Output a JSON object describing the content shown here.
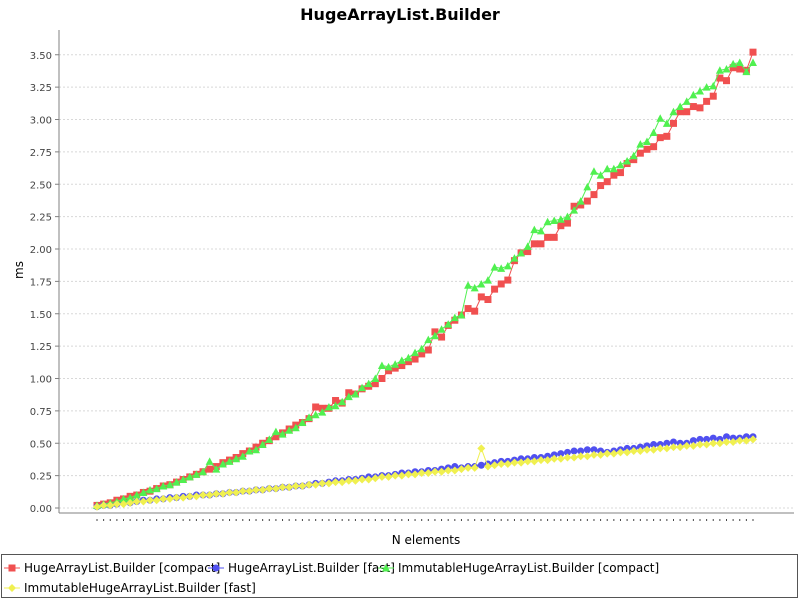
{
  "chart_data": {
    "type": "line",
    "title": "HugeArrayList.Builder",
    "xlabel": "N elements",
    "ylabel": "ms",
    "ylim": [
      0,
      3.6
    ],
    "yticks": [
      "0.00",
      "0.25",
      "0.50",
      "0.75",
      "1.00",
      "1.25",
      "1.50",
      "1.75",
      "2.00",
      "2.25",
      "2.50",
      "2.75",
      "3.00",
      "3.25",
      "3.50"
    ],
    "grid": true,
    "legend_position": "bottom",
    "x_points": 100,
    "series": [
      {
        "name": "HugeArrayList.Builder [compact]",
        "color": "#f05050",
        "marker": "square",
        "values": [
          0.02,
          0.03,
          0.04,
          0.06,
          0.07,
          0.09,
          0.1,
          0.12,
          0.13,
          0.15,
          0.17,
          0.18,
          0.2,
          0.22,
          0.24,
          0.26,
          0.28,
          0.3,
          0.32,
          0.35,
          0.37,
          0.39,
          0.42,
          0.44,
          0.47,
          0.5,
          0.52,
          0.55,
          0.58,
          0.61,
          0.64,
          0.66,
          0.69,
          0.78,
          0.77,
          0.77,
          0.83,
          0.81,
          0.89,
          0.88,
          0.92,
          0.94,
          0.96,
          1.0,
          1.06,
          1.08,
          1.1,
          1.13,
          1.15,
          1.19,
          1.22,
          1.36,
          1.32,
          1.41,
          1.45,
          1.49,
          1.54,
          1.52,
          1.63,
          1.61,
          1.69,
          1.73,
          1.76,
          1.91,
          1.97,
          1.98,
          2.04,
          2.04,
          2.09,
          2.09,
          2.18,
          2.2,
          2.33,
          2.34,
          2.37,
          2.42,
          2.49,
          2.52,
          2.57,
          2.59,
          2.66,
          2.69,
          2.74,
          2.77,
          2.79,
          2.86,
          2.87,
          2.97,
          3.06,
          3.06,
          3.1,
          3.09,
          3.14,
          3.18,
          3.32,
          3.3,
          3.4,
          3.39,
          3.38,
          3.52
        ]
      },
      {
        "name": "HugeArrayList.Builder [fast]",
        "color": "#5050f0",
        "marker": "circle",
        "values": [
          0.01,
          0.02,
          0.02,
          0.03,
          0.04,
          0.04,
          0.05,
          0.06,
          0.06,
          0.07,
          0.07,
          0.08,
          0.08,
          0.09,
          0.09,
          0.1,
          0.1,
          0.1,
          0.11,
          0.11,
          0.12,
          0.12,
          0.13,
          0.13,
          0.14,
          0.14,
          0.15,
          0.15,
          0.16,
          0.16,
          0.17,
          0.17,
          0.18,
          0.19,
          0.19,
          0.2,
          0.21,
          0.21,
          0.22,
          0.22,
          0.23,
          0.24,
          0.24,
          0.25,
          0.25,
          0.26,
          0.27,
          0.27,
          0.28,
          0.28,
          0.29,
          0.29,
          0.3,
          0.31,
          0.32,
          0.31,
          0.32,
          0.32,
          0.33,
          0.34,
          0.35,
          0.36,
          0.36,
          0.37,
          0.38,
          0.38,
          0.39,
          0.39,
          0.4,
          0.41,
          0.42,
          0.43,
          0.44,
          0.44,
          0.45,
          0.45,
          0.44,
          0.43,
          0.44,
          0.45,
          0.46,
          0.46,
          0.47,
          0.48,
          0.49,
          0.49,
          0.5,
          0.51,
          0.5,
          0.5,
          0.52,
          0.53,
          0.53,
          0.54,
          0.53,
          0.55,
          0.54,
          0.54,
          0.55,
          0.55
        ]
      },
      {
        "name": "ImmutableHugeArrayList.Builder [compact]",
        "color": "#50f050",
        "marker": "triangle",
        "values": [
          0.02,
          0.03,
          0.04,
          0.05,
          0.07,
          0.08,
          0.1,
          0.12,
          0.14,
          0.15,
          0.17,
          0.18,
          0.2,
          0.22,
          0.24,
          0.26,
          0.28,
          0.36,
          0.3,
          0.34,
          0.36,
          0.38,
          0.4,
          0.44,
          0.45,
          0.49,
          0.53,
          0.59,
          0.57,
          0.6,
          0.62,
          0.66,
          0.7,
          0.72,
          0.74,
          0.78,
          0.79,
          0.82,
          0.86,
          0.88,
          0.93,
          0.96,
          1.0,
          1.1,
          1.09,
          1.11,
          1.14,
          1.16,
          1.2,
          1.23,
          1.3,
          1.33,
          1.38,
          1.42,
          1.47,
          1.49,
          1.72,
          1.7,
          1.73,
          1.76,
          1.86,
          1.85,
          1.87,
          1.93,
          1.97,
          2.02,
          2.15,
          2.14,
          2.21,
          2.22,
          2.23,
          2.25,
          2.3,
          2.37,
          2.48,
          2.6,
          2.57,
          2.62,
          2.62,
          2.65,
          2.68,
          2.72,
          2.81,
          2.83,
          2.9,
          3.01,
          2.97,
          3.06,
          3.1,
          3.14,
          3.19,
          3.22,
          3.25,
          3.26,
          3.38,
          3.39,
          3.43,
          3.44,
          3.37,
          3.44
        ]
      },
      {
        "name": "ImmutableHugeArrayList.Builder [fast]",
        "color": "#f0f050",
        "marker": "diamond",
        "values": [
          0.01,
          0.02,
          0.02,
          0.03,
          0.03,
          0.04,
          0.05,
          0.05,
          0.06,
          0.06,
          0.07,
          0.07,
          0.08,
          0.08,
          0.09,
          0.09,
          0.1,
          0.1,
          0.11,
          0.11,
          0.12,
          0.12,
          0.13,
          0.13,
          0.14,
          0.14,
          0.15,
          0.15,
          0.16,
          0.16,
          0.17,
          0.17,
          0.18,
          0.18,
          0.19,
          0.19,
          0.2,
          0.2,
          0.21,
          0.21,
          0.22,
          0.22,
          0.23,
          0.24,
          0.24,
          0.25,
          0.25,
          0.26,
          0.26,
          0.27,
          0.27,
          0.28,
          0.28,
          0.29,
          0.29,
          0.3,
          0.31,
          0.31,
          0.46,
          0.32,
          0.33,
          0.34,
          0.34,
          0.35,
          0.35,
          0.36,
          0.36,
          0.37,
          0.37,
          0.38,
          0.38,
          0.39,
          0.39,
          0.4,
          0.4,
          0.41,
          0.41,
          0.42,
          0.42,
          0.43,
          0.43,
          0.44,
          0.44,
          0.45,
          0.45,
          0.46,
          0.46,
          0.47,
          0.47,
          0.48,
          0.48,
          0.49,
          0.49,
          0.5,
          0.5,
          0.51,
          0.51,
          0.52,
          0.52,
          0.53
        ]
      }
    ]
  }
}
